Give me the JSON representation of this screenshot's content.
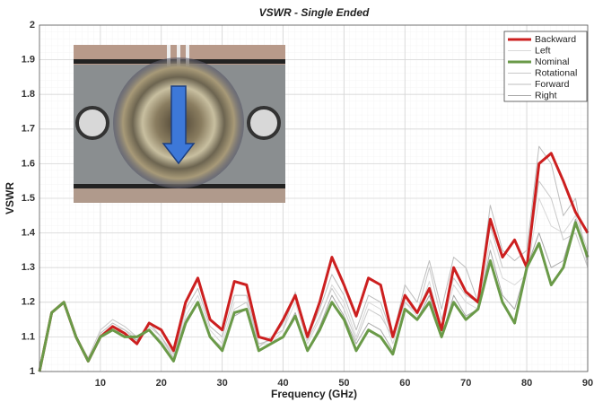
{
  "chart_data": {
    "type": "line",
    "title": "VSWR - Single Ended",
    "x_label": "Frequency (GHz)",
    "y_label": "VSWR",
    "xlim": [
      0,
      90
    ],
    "xticks": [
      10,
      20,
      30,
      40,
      50,
      60,
      70,
      80,
      90
    ],
    "ylim": [
      1,
      2
    ],
    "yticks": [
      1,
      1.1,
      1.2,
      1.3,
      1.4,
      1.5,
      1.6,
      1.7,
      1.8,
      1.9,
      2
    ],
    "grid": true,
    "legend": "upper right",
    "x": [
      0,
      2,
      4,
      6,
      8,
      10,
      12,
      14,
      16,
      18,
      20,
      22,
      24,
      26,
      28,
      30,
      32,
      34,
      36,
      38,
      40,
      42,
      44,
      46,
      48,
      50,
      52,
      54,
      56,
      58,
      60,
      62,
      64,
      66,
      68,
      70,
      72,
      74,
      76,
      78,
      80,
      82,
      84,
      86,
      88,
      90
    ],
    "series": [
      {
        "name": "Backward",
        "color": "#cc1f1f",
        "linewidth": 3,
        "values": [
          1.0,
          1.17,
          1.2,
          1.1,
          1.03,
          1.1,
          1.13,
          1.11,
          1.08,
          1.14,
          1.12,
          1.06,
          1.2,
          1.27,
          1.15,
          1.12,
          1.26,
          1.25,
          1.1,
          1.09,
          1.15,
          1.22,
          1.1,
          1.2,
          1.33,
          1.25,
          1.16,
          1.27,
          1.25,
          1.1,
          1.22,
          1.17,
          1.24,
          1.12,
          1.3,
          1.23,
          1.2,
          1.44,
          1.33,
          1.38,
          1.3,
          1.6,
          1.63,
          1.55,
          1.46,
          1.4
        ]
      },
      {
        "name": "Left",
        "color": "#d8d8d8",
        "linewidth": 1,
        "values": [
          1.0,
          1.17,
          1.2,
          1.1,
          1.03,
          1.1,
          1.13,
          1.12,
          1.1,
          1.12,
          1.09,
          1.04,
          1.16,
          1.22,
          1.12,
          1.08,
          1.2,
          1.2,
          1.08,
          1.08,
          1.12,
          1.2,
          1.08,
          1.15,
          1.25,
          1.2,
          1.1,
          1.2,
          1.18,
          1.08,
          1.2,
          1.16,
          1.26,
          1.12,
          1.25,
          1.2,
          1.18,
          1.38,
          1.27,
          1.25,
          1.28,
          1.5,
          1.42,
          1.4,
          1.45,
          1.35
        ]
      },
      {
        "name": "Nominal",
        "color": "#6a9a48",
        "linewidth": 3,
        "values": [
          1.0,
          1.17,
          1.2,
          1.1,
          1.03,
          1.1,
          1.12,
          1.1,
          1.1,
          1.12,
          1.08,
          1.03,
          1.14,
          1.2,
          1.1,
          1.06,
          1.17,
          1.18,
          1.06,
          1.08,
          1.1,
          1.16,
          1.06,
          1.12,
          1.2,
          1.15,
          1.06,
          1.12,
          1.1,
          1.05,
          1.18,
          1.15,
          1.2,
          1.1,
          1.2,
          1.15,
          1.18,
          1.32,
          1.2,
          1.14,
          1.3,
          1.37,
          1.25,
          1.3,
          1.43,
          1.33
        ]
      },
      {
        "name": "Rotational",
        "color": "#c8c8c8",
        "linewidth": 1,
        "values": [
          1.0,
          1.17,
          1.2,
          1.1,
          1.04,
          1.12,
          1.15,
          1.13,
          1.1,
          1.13,
          1.1,
          1.05,
          1.15,
          1.2,
          1.1,
          1.07,
          1.18,
          1.2,
          1.07,
          1.1,
          1.12,
          1.23,
          1.09,
          1.16,
          1.24,
          1.18,
          1.09,
          1.18,
          1.16,
          1.1,
          1.2,
          1.17,
          1.3,
          1.15,
          1.27,
          1.22,
          1.2,
          1.42,
          1.3,
          1.3,
          1.3,
          1.55,
          1.5,
          1.38,
          1.4,
          1.3
        ]
      },
      {
        "name": "Forward",
        "color": "#bdbdbd",
        "linewidth": 1,
        "values": [
          1.0,
          1.17,
          1.2,
          1.1,
          1.03,
          1.11,
          1.14,
          1.12,
          1.09,
          1.14,
          1.1,
          1.04,
          1.18,
          1.24,
          1.13,
          1.1,
          1.22,
          1.22,
          1.08,
          1.09,
          1.14,
          1.22,
          1.1,
          1.18,
          1.28,
          1.22,
          1.12,
          1.22,
          1.2,
          1.1,
          1.25,
          1.2,
          1.32,
          1.18,
          1.33,
          1.3,
          1.2,
          1.48,
          1.35,
          1.32,
          1.35,
          1.65,
          1.6,
          1.45,
          1.5,
          1.3
        ]
      },
      {
        "name": "Right",
        "color": "#a8a8a8",
        "linewidth": 1,
        "values": [
          1.0,
          1.17,
          1.2,
          1.1,
          1.03,
          1.1,
          1.12,
          1.11,
          1.09,
          1.12,
          1.08,
          1.03,
          1.14,
          1.2,
          1.1,
          1.06,
          1.16,
          1.18,
          1.06,
          1.08,
          1.1,
          1.17,
          1.06,
          1.13,
          1.22,
          1.16,
          1.08,
          1.14,
          1.12,
          1.06,
          1.18,
          1.15,
          1.22,
          1.1,
          1.22,
          1.16,
          1.18,
          1.35,
          1.22,
          1.18,
          1.3,
          1.4,
          1.3,
          1.32,
          1.44,
          1.32
        ]
      }
    ]
  }
}
